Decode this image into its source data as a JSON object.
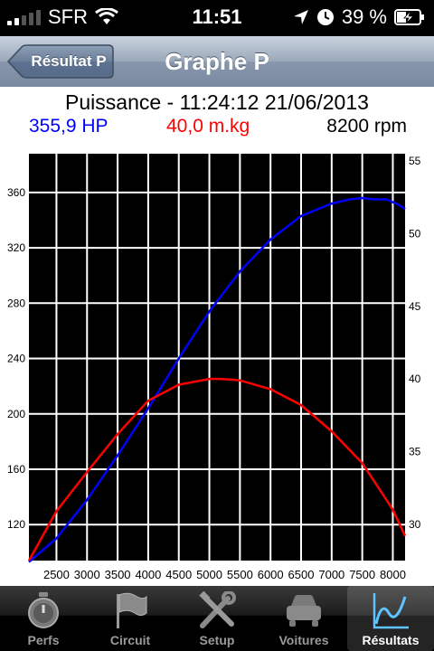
{
  "status": {
    "carrier": "SFR",
    "time": "11:51",
    "battery": "39 %"
  },
  "nav": {
    "back_label": "Résultat P",
    "title": "Graphe P"
  },
  "chart_header": {
    "title": "Puissance - 11:24:12 21/06/2013",
    "hp": "355,9 HP",
    "torque": "40,0 m.kg",
    "rpm": "8200 rpm"
  },
  "colors": {
    "power": "#0000ff",
    "torque": "#ff0000",
    "grid": "#000000",
    "plot_bg": "#000000"
  },
  "chart_data": {
    "type": "line",
    "x_ticks": [
      "2500",
      "3000",
      "3500",
      "4000",
      "4500",
      "5000",
      "5500",
      "6000",
      "6500",
      "7000",
      "7500",
      "8000"
    ],
    "y_left_ticks": [
      "120",
      "160",
      "200",
      "240",
      "280",
      "320",
      "360"
    ],
    "y_right_ticks": [
      "30",
      "35",
      "40",
      "45",
      "50",
      "55"
    ],
    "xlim": [
      2050,
      8200
    ],
    "y_left_lim": [
      94,
      388
    ],
    "y_right_lim": [
      27.5,
      55.5
    ],
    "grid": true,
    "series": [
      {
        "name": "355,9 HP",
        "axis": "left",
        "color": "#0000ff",
        "x": [
          2050,
          2500,
          3000,
          3500,
          4000,
          4500,
          5000,
          5500,
          6000,
          6500,
          7000,
          7300,
          7500,
          7700,
          7900,
          8100,
          8200
        ],
        "y": [
          93,
          110,
          138,
          170,
          204,
          240,
          274,
          303,
          326,
          343,
          352,
          355,
          356,
          355,
          355,
          351,
          348
        ]
      },
      {
        "name": "40,0 m.kg",
        "axis": "right",
        "color": "#ff0000",
        "x": [
          2050,
          2500,
          3000,
          3500,
          4000,
          4500,
          5000,
          5200,
          5500,
          6000,
          6500,
          7000,
          7500,
          7800,
          8000,
          8200
        ],
        "y": [
          27.5,
          30.9,
          33.6,
          36.2,
          38.5,
          39.6,
          40.0,
          40.0,
          39.9,
          39.3,
          38.2,
          36.4,
          34.2,
          32.3,
          31.0,
          29.2
        ]
      }
    ]
  },
  "tabs": [
    {
      "label": "Perfs",
      "icon": "stopwatch-icon"
    },
    {
      "label": "Circuit",
      "icon": "flag-icon"
    },
    {
      "label": "Setup",
      "icon": "tools-icon"
    },
    {
      "label": "Voitures",
      "icon": "car-icon"
    },
    {
      "label": "Résultats",
      "icon": "graph-icon",
      "active": true
    }
  ]
}
